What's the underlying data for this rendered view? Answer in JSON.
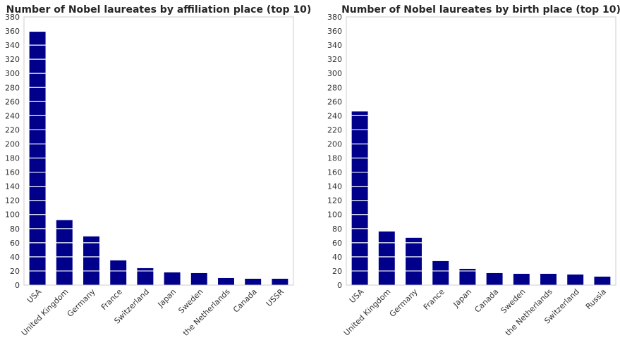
{
  "chart_data": [
    {
      "type": "bar",
      "title": "Number of Nobel laureates by affiliation place (top 10)",
      "categories": [
        "USA",
        "United Kingdom",
        "Germany",
        "France",
        "Switzerland",
        "Japan",
        "Sweden",
        "the Netherlands",
        "Canada",
        "USSR"
      ],
      "values": [
        359,
        92,
        69,
        35,
        24,
        18,
        17,
        10,
        9,
        9
      ],
      "ylim": [
        0,
        380
      ],
      "yticks": [
        "0",
        "20",
        "40",
        "60",
        "80",
        "100",
        "120",
        "140",
        "160",
        "180",
        "200",
        "220",
        "240",
        "260",
        "280",
        "300",
        "320",
        "340",
        "360",
        "380"
      ],
      "xlabel": "",
      "ylabel": "",
      "grid": true,
      "bar_color": "#00008b",
      "grid_color": "#ffffff"
    },
    {
      "type": "bar",
      "title": "Number of Nobel laureates by birth place (top 10)",
      "categories": [
        "USA",
        "United Kingdom",
        "Germany",
        "France",
        "Japan",
        "Canada",
        "Sweden",
        "the Netherlands",
        "Switzerland",
        "Russia"
      ],
      "values": [
        246,
        76,
        67,
        34,
        23,
        17,
        16,
        16,
        15,
        12
      ],
      "ylim": [
        0,
        380
      ],
      "yticks": [
        "0",
        "20",
        "40",
        "60",
        "80",
        "100",
        "120",
        "140",
        "160",
        "180",
        "200",
        "220",
        "240",
        "260",
        "280",
        "300",
        "320",
        "340",
        "360",
        "380"
      ],
      "xlabel": "",
      "ylabel": "",
      "grid": true,
      "bar_color": "#00008b",
      "grid_color": "#ffffff"
    }
  ]
}
